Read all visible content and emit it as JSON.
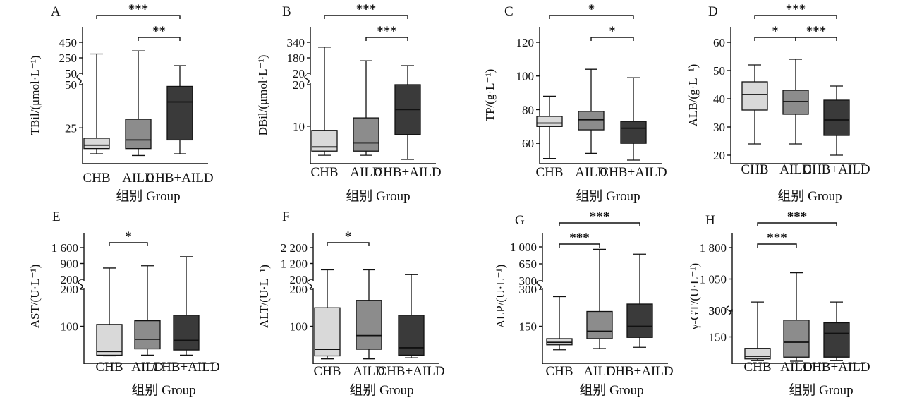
{
  "colors": {
    "CHB": "#d9d9d9",
    "AILD": "#8c8c8c",
    "CHB+AILD": "#3a3a3a"
  },
  "chart_data": [
    {
      "panel": "A",
      "type": "box",
      "ylabel": "TBil/(μmol·L⁻¹)",
      "xlabel": "组别 Group",
      "categories": [
        "CHB",
        "AILD",
        "CHB+AILD"
      ],
      "yscale": "broken",
      "ticks": [
        "25",
        "50",
        "50",
        "250",
        "450"
      ],
      "boxes": [
        {
          "name": "CHB",
          "min": 10,
          "q1": 13,
          "median": 15,
          "q3": 19,
          "max": 300
        },
        {
          "name": "AILD",
          "min": 9,
          "q1": 13,
          "median": 18,
          "q3": 30,
          "max": 340
        },
        {
          "name": "CHB+AILD",
          "min": 10,
          "q1": 18,
          "median": 40,
          "q3": 49,
          "max": 150
        }
      ],
      "significance": [
        {
          "from": "CHB",
          "to": "CHB+AILD",
          "label": "***"
        },
        {
          "from": "AILD",
          "to": "CHB+AILD",
          "label": "**"
        }
      ]
    },
    {
      "panel": "B",
      "type": "box",
      "ylabel": "DBil/(μmol·L⁻¹)",
      "xlabel": "组别 Group",
      "categories": [
        "CHB",
        "AILD",
        "CHB+AILD"
      ],
      "yscale": "broken",
      "ticks": [
        "10",
        "20",
        "20",
        "180",
        "340"
      ],
      "boxes": [
        {
          "name": "CHB",
          "min": 3,
          "q1": 4,
          "median": 5,
          "q3": 9,
          "max": 290
        },
        {
          "name": "AILD",
          "min": 3,
          "q1": 4,
          "median": 6,
          "q3": 12,
          "max": 150
        },
        {
          "name": "CHB+AILD",
          "min": 2,
          "q1": 8,
          "median": 14,
          "q3": 20,
          "max": 100
        }
      ],
      "significance": [
        {
          "from": "CHB",
          "to": "CHB+AILD",
          "label": "***"
        },
        {
          "from": "AILD",
          "to": "CHB+AILD",
          "label": "***"
        }
      ]
    },
    {
      "panel": "C",
      "type": "box",
      "ylabel": "TP/(g·L⁻¹)",
      "xlabel": "组别 Group",
      "categories": [
        "CHB",
        "AILD",
        "CHB+AILD"
      ],
      "yscale": "linear",
      "ylim": [
        50,
        120
      ],
      "ticks": [
        "60",
        "80",
        "100",
        "120"
      ],
      "boxes": [
        {
          "name": "CHB",
          "min": 51,
          "q1": 70,
          "median": 72,
          "q3": 76,
          "max": 88
        },
        {
          "name": "AILD",
          "min": 54,
          "q1": 68,
          "median": 74,
          "q3": 79,
          "max": 104
        },
        {
          "name": "CHB+AILD",
          "min": 50,
          "q1": 60,
          "median": 69,
          "q3": 73,
          "max": 99
        }
      ],
      "significance": [
        {
          "from": "CHB",
          "to": "CHB+AILD",
          "label": "*"
        },
        {
          "from": "AILD",
          "to": "CHB+AILD",
          "label": "*"
        }
      ]
    },
    {
      "panel": "D",
      "type": "box",
      "ylabel": "ALB/(g·L⁻¹)",
      "xlabel": "组别 Group",
      "categories": [
        "CHB",
        "AILD",
        "CHB+AILD"
      ],
      "yscale": "linear",
      "ylim": [
        17,
        60
      ],
      "ticks": [
        "20",
        "30",
        "40",
        "50",
        "60"
      ],
      "boxes": [
        {
          "name": "CHB",
          "min": 24,
          "q1": 36,
          "median": 41.5,
          "q3": 46,
          "max": 52
        },
        {
          "name": "AILD",
          "min": 24,
          "q1": 34.5,
          "median": 39,
          "q3": 43,
          "max": 54
        },
        {
          "name": "CHB+AILD",
          "min": 20,
          "q1": 27,
          "median": 32.5,
          "q3": 39.5,
          "max": 44.5
        }
      ],
      "significance": [
        {
          "from": "CHB",
          "to": "CHB+AILD",
          "label": "***"
        },
        {
          "from": "CHB",
          "to": "AILD",
          "label": "*"
        },
        {
          "from": "AILD",
          "to": "CHB+AILD",
          "label": "***"
        }
      ]
    },
    {
      "panel": "E",
      "type": "box",
      "ylabel": "AST/(U·L⁻¹)",
      "xlabel": "组别 Group",
      "categories": [
        "CHB",
        "AILD",
        "CHB+AILD"
      ],
      "yscale": "broken",
      "ticks": [
        "100",
        "200",
        "200",
        "900",
        "1 600"
      ],
      "boxes": [
        {
          "name": "CHB",
          "min": 20,
          "q1": 22,
          "median": 32,
          "q3": 105,
          "max": 700
        },
        {
          "name": "AILD",
          "min": 22,
          "q1": 39,
          "median": 65,
          "q3": 115,
          "max": 800
        },
        {
          "name": "CHB+AILD",
          "min": 22,
          "q1": 36,
          "median": 62,
          "q3": 130,
          "max": 1200
        }
      ],
      "significance": [
        {
          "from": "CHB",
          "to": "AILD",
          "label": "*"
        }
      ]
    },
    {
      "panel": "F",
      "type": "box",
      "ylabel": "ALT/(U·L⁻¹)",
      "xlabel": "组别 Group",
      "categories": [
        "CHB",
        "AILD",
        "CHB+AILD"
      ],
      "yscale": "broken",
      "ticks": [
        "100",
        "200",
        "200",
        "1 200",
        "2 200"
      ],
      "boxes": [
        {
          "name": "CHB",
          "min": 12,
          "q1": 20,
          "median": 38,
          "q3": 150,
          "max": 800
        },
        {
          "name": "AILD",
          "min": 12,
          "q1": 38,
          "median": 75,
          "q3": 170,
          "max": 800
        },
        {
          "name": "CHB+AILD",
          "min": 15,
          "q1": 22,
          "median": 42,
          "q3": 130,
          "max": 500
        }
      ],
      "significance": [
        {
          "from": "CHB",
          "to": "AILD",
          "label": "*"
        }
      ]
    },
    {
      "panel": "G",
      "type": "box",
      "ylabel": "ALP/(U·L⁻¹)",
      "xlabel": "组别 Group",
      "categories": [
        "CHB",
        "AILD",
        "CHB+AILD"
      ],
      "yscale": "broken",
      "ticks": [
        "150",
        "300",
        "300",
        "650",
        "1 000"
      ],
      "boxes": [
        {
          "name": "CHB",
          "min": 55,
          "q1": 75,
          "median": 85,
          "q3": 100,
          "max": 270
        },
        {
          "name": "AILD",
          "min": 60,
          "q1": 100,
          "median": 130,
          "q3": 210,
          "max": 950
        },
        {
          "name": "CHB+AILD",
          "min": 65,
          "q1": 105,
          "median": 150,
          "q3": 240,
          "max": 850
        }
      ],
      "significance": [
        {
          "from": "CHB",
          "to": "CHB+AILD",
          "label": "***"
        },
        {
          "from": "CHB",
          "to": "AILD",
          "label": "***"
        }
      ]
    },
    {
      "panel": "H",
      "type": "box",
      "ylabel": "γ-GT/(U·L⁻¹)",
      "xlabel": "组别 Group",
      "categories": [
        "CHB",
        "AILD",
        "CHB+AILD"
      ],
      "yscale": "broken",
      "ticks": [
        "150",
        "300",
        "300",
        "1 050",
        "1 800"
      ],
      "boxes": [
        {
          "name": "CHB",
          "min": 15,
          "q1": 25,
          "median": 40,
          "q3": 85,
          "max": 500
        },
        {
          "name": "AILD",
          "min": 12,
          "q1": 35,
          "median": 120,
          "q3": 245,
          "max": 1200
        },
        {
          "name": "CHB+AILD",
          "min": 15,
          "q1": 35,
          "median": 170,
          "q3": 230,
          "max": 500
        }
      ],
      "significance": [
        {
          "from": "CHB",
          "to": "CHB+AILD",
          "label": "***"
        },
        {
          "from": "CHB",
          "to": "AILD",
          "label": "***"
        }
      ]
    }
  ]
}
